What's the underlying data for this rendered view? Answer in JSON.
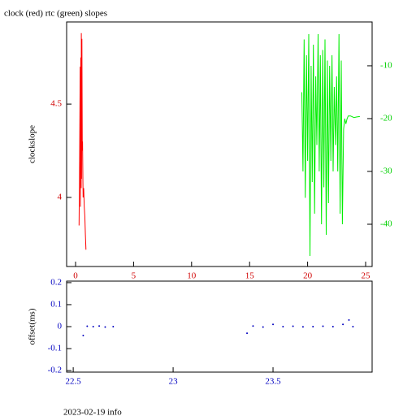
{
  "title": "clock (red) rtc (green) slopes",
  "footer": "2023-02-19 info",
  "chart_data": [
    {
      "type": "line",
      "y_label": "clockslope",
      "xlim": [
        -0.77,
        25.56
      ],
      "xticks": [
        0,
        5,
        10,
        15,
        20,
        25
      ],
      "xtick_color": "#d00000",
      "ylim": [
        3.63,
        4.94
      ],
      "yticks": [
        4,
        4.5
      ],
      "ytick_color": "#d00000",
      "y2lim": [
        -48,
        -1.7
      ],
      "y2ticks": [
        -10,
        -20,
        -30,
        -40
      ],
      "y2tick_color": "#00d000",
      "series": [
        {
          "name": "clock",
          "color": "#ff0000",
          "axis": "y",
          "x": [
            0.3,
            0.35,
            0.4,
            0.42,
            0.45,
            0.48,
            0.5,
            0.52,
            0.55,
            0.58,
            0.6,
            0.63,
            0.65,
            0.7,
            0.75,
            0.8,
            0.85,
            0.9
          ],
          "values": [
            3.85,
            4.2,
            4.7,
            3.95,
            4.75,
            4.05,
            4.88,
            4.1,
            4.85,
            4.25,
            4.3,
            4.1,
            4.0,
            4.05,
            3.95,
            3.9,
            3.8,
            3.72
          ]
        },
        {
          "name": "rtc",
          "color": "#00ee00",
          "axis": "y2",
          "x": [
            19.5,
            19.6,
            19.7,
            19.8,
            19.9,
            20.0,
            20.1,
            20.2,
            20.3,
            20.4,
            20.5,
            20.6,
            20.7,
            20.8,
            20.9,
            21.0,
            21.1,
            21.2,
            21.3,
            21.4,
            21.5,
            21.6,
            21.7,
            21.8,
            21.9,
            22.0,
            22.1,
            22.2,
            22.3,
            22.4,
            22.5,
            22.6,
            22.7,
            22.8,
            22.9,
            23.0,
            23.1,
            23.2,
            23.3,
            23.4,
            23.5,
            23.7,
            24.0,
            24.2,
            24.5
          ],
          "values": [
            -15,
            -30,
            -5,
            -35,
            -8,
            -28,
            -4,
            -46,
            -10,
            -32,
            -6,
            -38,
            -12,
            -25,
            -4,
            -30,
            -8,
            -40,
            -7,
            -33,
            -5,
            -42,
            -9,
            -36,
            -10,
            -28,
            -8,
            -30,
            -14,
            -25,
            -12,
            -30,
            -4,
            -38,
            -9,
            -40,
            -22,
            -20,
            -21,
            -20,
            -19.5,
            -19.5,
            -19.8,
            -19.7,
            -19.6
          ]
        }
      ]
    },
    {
      "type": "scatter",
      "y_label": "offset(ms)",
      "xlim": [
        22.467,
        23.996
      ],
      "xticks": [
        22.5,
        23,
        23.5
      ],
      "xtick_color": "#0000c0",
      "ylim": [
        -0.207,
        0.207
      ],
      "yticks": [
        0.2,
        0.1,
        0,
        -0.1,
        -0.2
      ],
      "ytick_color": "#0000c0",
      "series": [
        {
          "color": "#0000c0",
          "x": [
            22.55,
            22.57,
            22.6,
            22.63,
            22.66,
            22.7,
            23.37,
            23.4,
            23.45,
            23.5,
            23.55,
            23.6,
            23.65,
            23.7,
            23.75,
            23.8,
            23.85,
            23.88,
            23.9
          ],
          "values": [
            -0.04,
            0.002,
            0,
            0.003,
            -0.002,
            0,
            -0.03,
            0.003,
            -0.002,
            0.01,
            0,
            0.002,
            -0.001,
            0,
            0.002,
            0,
            0.01,
            0.03,
            0
          ]
        }
      ]
    }
  ]
}
